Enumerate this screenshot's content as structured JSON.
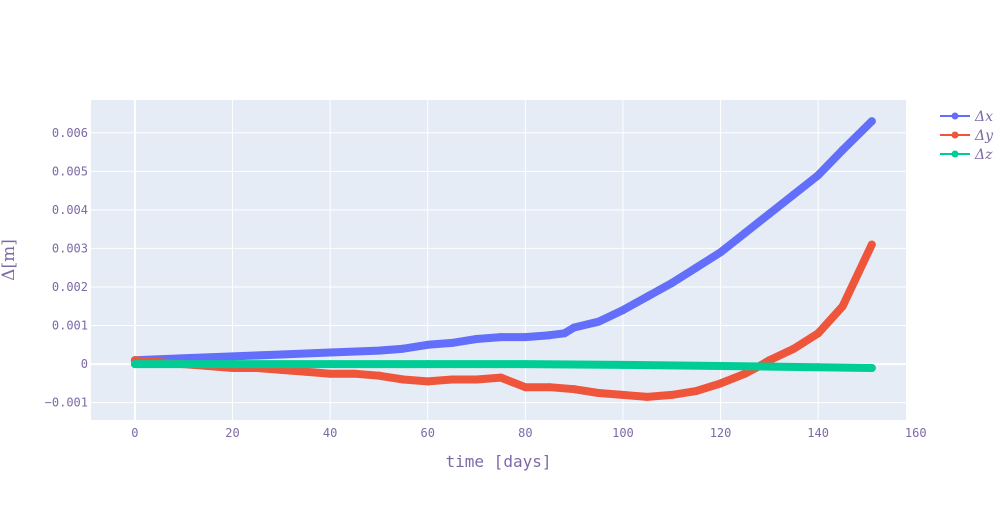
{
  "chart_data": {
    "type": "line",
    "xlabel": "time [days]",
    "ylabel": "Δ[m]",
    "xlim": [
      -9,
      158
    ],
    "ylim": [
      -0.00145,
      0.00685
    ],
    "xticks": [
      0,
      20,
      40,
      60,
      80,
      100,
      120,
      140,
      160
    ],
    "xtick_labels": [
      "0",
      "20",
      "40",
      "60",
      "80",
      "100",
      "120",
      "140",
      "160"
    ],
    "yticks": [
      -0.001,
      0,
      0.001,
      0.002,
      0.003,
      0.004,
      0.005,
      0.006
    ],
    "ytick_labels": [
      "−0.001",
      "0",
      "0.001",
      "0.002",
      "0.003",
      "0.004",
      "0.005",
      "0.006"
    ],
    "grid": true,
    "legend_position": "top-right",
    "series": [
      {
        "name": "Δx",
        "color": "#636efa",
        "x": [
          0,
          10,
          20,
          30,
          40,
          50,
          55,
          60,
          65,
          70,
          75,
          80,
          85,
          88,
          90,
          95,
          100,
          105,
          110,
          115,
          120,
          125,
          130,
          135,
          140,
          145,
          151
        ],
        "y": [
          0.0001,
          0.00015,
          0.0002,
          0.00025,
          0.0003,
          0.00035,
          0.0004,
          0.0005,
          0.00055,
          0.00065,
          0.0007,
          0.0007,
          0.00075,
          0.0008,
          0.00095,
          0.0011,
          0.0014,
          0.00175,
          0.0021,
          0.0025,
          0.0029,
          0.0034,
          0.0039,
          0.0044,
          0.0049,
          0.00555,
          0.0063
        ]
      },
      {
        "name": "Δy",
        "color": "#ef553b",
        "x": [
          0,
          5,
          10,
          15,
          20,
          25,
          30,
          35,
          40,
          45,
          50,
          55,
          60,
          65,
          70,
          75,
          80,
          85,
          90,
          95,
          100,
          105,
          110,
          115,
          120,
          125,
          128,
          130,
          135,
          140,
          145,
          151
        ],
        "y": [
          0.0001,
          5e-05,
          0,
          -5e-05,
          -0.0001,
          -0.0001,
          -0.00015,
          -0.0002,
          -0.00025,
          -0.00025,
          -0.0003,
          -0.0004,
          -0.00045,
          -0.0004,
          -0.0004,
          -0.00035,
          -0.0006,
          -0.0006,
          -0.00065,
          -0.00075,
          -0.0008,
          -0.00085,
          -0.0008,
          -0.0007,
          -0.0005,
          -0.00025,
          -5e-05,
          0.0001,
          0.0004,
          0.0008,
          0.0015,
          0.0031
        ]
      },
      {
        "name": "Δz",
        "color": "#00cc96",
        "x": [
          0,
          20,
          40,
          60,
          80,
          100,
          120,
          140,
          151
        ],
        "y": [
          0,
          0,
          0,
          0,
          0,
          -2e-05,
          -5e-05,
          -8e-05,
          -0.0001
        ]
      }
    ]
  }
}
